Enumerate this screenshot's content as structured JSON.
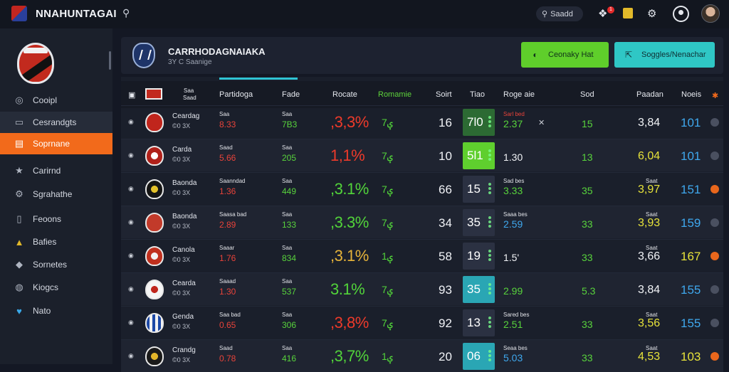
{
  "app": {
    "title": "NNAHUNTAGAI",
    "search_glyph": "⚲",
    "search_pill_label": "Saadd",
    "notif_count": "1"
  },
  "colors": {
    "accent": "#f26a1b",
    "green": "#5fce2b",
    "teal": "#2fc7c5",
    "red": "#e03a2a",
    "yellow": "#e7e33a",
    "blue": "#3fa8ee"
  },
  "sidebar": {
    "items": [
      {
        "label": "Cooipl",
        "icon": "coin-icon"
      },
      {
        "label": "Cesrandgts",
        "icon": "document-icon"
      },
      {
        "label": "Soprnane",
        "icon": "chart-icon",
        "active": true
      },
      {
        "label": "Carirnd",
        "icon": "star-icon"
      },
      {
        "label": "Sgrahathe",
        "icon": "settings-icon"
      },
      {
        "label": "Feoons",
        "icon": "file-icon"
      },
      {
        "label": "Bafies",
        "icon": "graduation-icon"
      },
      {
        "label": "Sornetes",
        "icon": "car-icon"
      },
      {
        "label": "Kiogcs",
        "icon": "globe-icon"
      },
      {
        "label": "Nato",
        "icon": "twitter-icon"
      }
    ]
  },
  "header": {
    "title": "CARRHODAGNAIAKA",
    "subtitle": "3Y C Saanige",
    "btn_primary": "Ceonaky Hat",
    "btn_secondary": "Soggles/Nenachar"
  },
  "table": {
    "columns": {
      "c0": "P",
      "c1a": "Saa",
      "c1b": "Saad",
      "partidos": "Partidoga",
      "plan": "Fade",
      "rate": "Rocate",
      "rem": "Romamie",
      "sort": "Soirt",
      "tile": "Tiao",
      "ratio": "Roge aie",
      "stat": "Sod",
      "delta": "Paadan",
      "val": "Noeis"
    },
    "rows": [
      {
        "team": "Ceardag",
        "sub": "©0 3X",
        "p_top": "Saa",
        "p_big": "8.33",
        "f_top": "Saa",
        "f_big": "7B3",
        "pct": ",3,3%",
        "pct_color": "#ee3a2a",
        "rem": "ؠ7",
        "sort": "16",
        "tile": "7l0",
        "tile_bg": "#2c6a33",
        "ratio_top": "Sarl bed",
        "ratio": "2.37",
        "ratio_color": "#58d33c",
        "x_mark": "✕",
        "stat": "15",
        "delta_top": "",
        "delta": "3,84",
        "delta_color": "#f1f3f6",
        "val": "101",
        "val_color": "#3fa8ee",
        "dot": "gray"
      },
      {
        "team": "Carda",
        "sub": "©0 3X",
        "p_top": "Saad",
        "p_big": "5.66",
        "f_top": "Saa",
        "f_big": "205",
        "pct": "1,1%",
        "pct_color": "#ee3a2a",
        "rem": "ؠ7",
        "sort": "10",
        "tile": "5l1",
        "tile_bg": "#5fcf2e",
        "ratio_top": "",
        "ratio": "1.30",
        "ratio_color": "#f1f3f6",
        "x_mark": "",
        "stat": "13",
        "delta_top": "",
        "delta": "6,04",
        "delta_color": "#e7e33a",
        "val": "101",
        "val_color": "#3fa8ee",
        "dot": "gray"
      },
      {
        "team": "Baonda",
        "sub": "©0 3X",
        "p_top": "Saanndad",
        "p_big": "1.36",
        "f_top": "Saa",
        "f_big": "449",
        "pct": ",3.1%",
        "pct_color": "#52d43a",
        "rem": "ؠ7",
        "sort": "66",
        "tile": "15",
        "tile_bg": "#2b3142",
        "ratio_top": "Sad bes",
        "ratio": "3.33",
        "ratio_color": "#58d33c",
        "x_mark": "",
        "stat": "35",
        "delta_top": "Saat",
        "delta": "3,97",
        "delta_color": "#e7e33a",
        "val": "151",
        "val_color": "#3fa8ee",
        "dot": "orange"
      },
      {
        "team": "Baonda",
        "sub": "©0 3X",
        "p_top": "Saasa bad",
        "p_big": "2.89",
        "f_top": "Saa",
        "f_big": "133",
        "pct": ",3.3%",
        "pct_color": "#52d43a",
        "rem": "ؠ7",
        "sort": "34",
        "tile": "35",
        "tile_bg": "#2b3142",
        "ratio_top": "Saaa bes",
        "ratio": "2.59",
        "ratio_color": "#3fa8ee",
        "x_mark": "",
        "stat": "33",
        "delta_top": "Saat",
        "delta": "3,93",
        "delta_color": "#e7e33a",
        "val": "159",
        "val_color": "#3fa8ee",
        "dot": "gray"
      },
      {
        "team": "Canola",
        "sub": "©0 3X",
        "p_top": "Saaar",
        "p_big": "1.76",
        "f_top": "Saa",
        "f_big": "834",
        "pct": ",3.1%",
        "pct_color": "#e7b43a",
        "rem": "ؠ1",
        "sort": "58",
        "tile": "19",
        "tile_bg": "#2b3142",
        "ratio_top": "",
        "ratio": "1.5'",
        "ratio_color": "#f1f3f6",
        "x_mark": "",
        "stat": "33",
        "delta_top": "Saat",
        "delta": "3,66",
        "delta_color": "#f1f3f6",
        "val": "167",
        "val_color": "#e7e33a",
        "dot": "orange"
      },
      {
        "team": "Cearda",
        "sub": "©0 3X",
        "p_top": "Saaad",
        "p_big": "1.30",
        "f_top": "Saa",
        "f_big": "537",
        "pct": "3.1%",
        "pct_color": "#52d43a",
        "rem": "ؠ7",
        "sort": "93",
        "tile": "35",
        "tile_bg": "#2aa6b4",
        "ratio_top": "",
        "ratio": "2.99",
        "ratio_color": "#58d33c",
        "x_mark": "",
        "stat": "5.3",
        "delta_top": "",
        "delta": "3,84",
        "delta_color": "#f1f3f6",
        "val": "155",
        "val_color": "#3fa8ee",
        "dot": "gray"
      },
      {
        "team": "Genda",
        "sub": "©0 3X",
        "p_top": "Saa bad",
        "p_big": "0.65",
        "f_top": "Saa",
        "f_big": "306",
        "pct": ",3,8%",
        "pct_color": "#ee3a2a",
        "rem": "ؠ7",
        "sort": "92",
        "tile": "13",
        "tile_bg": "#2b3142",
        "ratio_top": "Sared bes",
        "ratio": "2.51",
        "ratio_color": "#58d33c",
        "x_mark": "",
        "stat": "33",
        "delta_top": "Saat",
        "delta": "3,56",
        "delta_color": "#e7e33a",
        "val": "155",
        "val_color": "#3fa8ee",
        "dot": "gray"
      },
      {
        "team": "Crandg",
        "sub": "©0 3X",
        "p_top": "Saad",
        "p_big": "0.78",
        "f_top": "Saa",
        "f_big": "416",
        "pct": ",3,7%",
        "pct_color": "#52d43a",
        "rem": "ؠ1",
        "sort": "20",
        "tile": "06",
        "tile_bg": "#2aa6b4",
        "ratio_top": "Seaa bes",
        "ratio": "5.03",
        "ratio_color": "#3fa8ee",
        "x_mark": "",
        "stat": "33",
        "delta_top": "Saat",
        "delta": "4,53",
        "delta_color": "#e7e33a",
        "val": "103",
        "val_color": "#e7e33a",
        "dot": "orange"
      }
    ]
  }
}
